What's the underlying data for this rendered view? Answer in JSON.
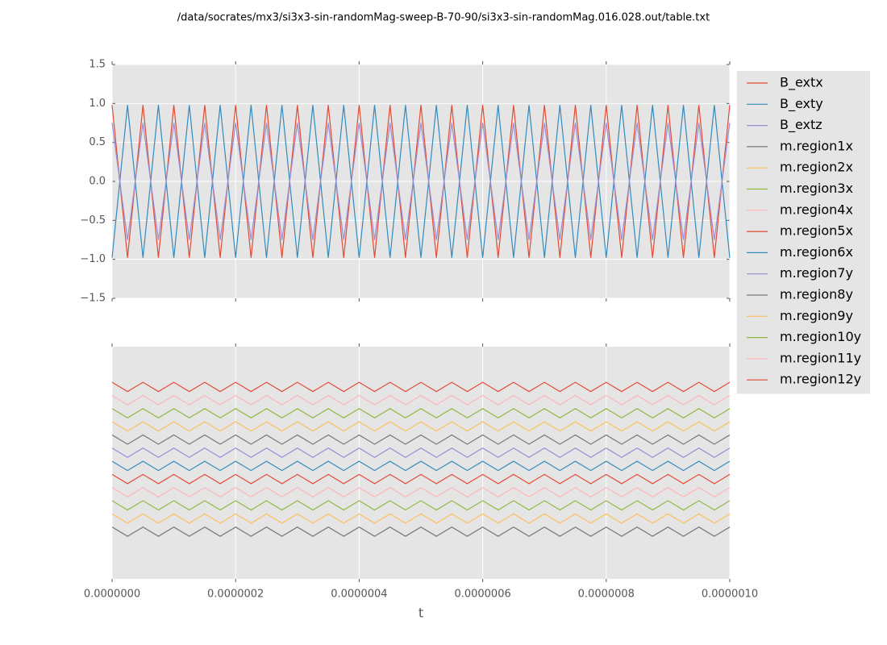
{
  "chart_data": [
    {
      "type": "line",
      "title": "/data/socrates/mx3/si3x3-sin-randomMag-sweep-B-70-90/si3x3-sin-randomMag.016.028.out/table.txt",
      "legend": "outside-right",
      "grid": true,
      "x": [
        0,
        2.5e-08,
        5e-08,
        7.5e-08,
        1e-07,
        1.25e-07,
        1.5e-07,
        1.75e-07,
        2e-07,
        2.25e-07,
        2.5e-07,
        2.75e-07,
        3e-07,
        3.25e-07,
        3.5e-07,
        3.75e-07,
        4e-07,
        4.25e-07,
        4.5e-07,
        4.75e-07,
        5e-07,
        5.25e-07,
        5.5e-07,
        5.75e-07,
        6e-07,
        6.25e-07,
        6.5e-07,
        6.75e-07,
        7e-07,
        7.25e-07,
        7.5e-07,
        7.75e-07,
        8e-07,
        8.25e-07,
        8.5e-07,
        8.75e-07,
        9e-07,
        9.25e-07,
        9.5e-07,
        9.75e-07,
        1e-06
      ],
      "xlim": [
        0,
        1e-06
      ],
      "xticks": [
        0,
        2e-07,
        4e-07,
        6e-07,
        8e-07,
        1e-06
      ],
      "ylim": [
        -1.5,
        1.5
      ],
      "yticks": [
        {
          "value": -1.5,
          "label": "−1.5"
        },
        {
          "value": -1,
          "label": "−1.0"
        },
        {
          "value": -0.5,
          "label": "−0.5"
        },
        {
          "value": 0,
          "label": "0.0"
        },
        0.5,
        {
          "value": 1,
          "label": "1.0"
        },
        1.5
      ],
      "series": [
        {
          "name": "B_extx",
          "color": "#e24a33",
          "values": [
            0.98,
            -0.98,
            0.98,
            -0.98,
            0.98,
            -0.98,
            0.98,
            -0.98,
            0.98,
            -0.98,
            0.98,
            -0.98,
            0.98,
            -0.98,
            0.98,
            -0.98,
            0.98,
            -0.98,
            0.98,
            -0.98,
            0.98,
            -0.98,
            0.98,
            -0.98,
            0.98,
            -0.98,
            0.98,
            -0.98,
            0.98,
            -0.98,
            0.98,
            -0.98,
            0.98,
            -0.98,
            0.98,
            -0.98,
            0.98,
            -0.98,
            0.98,
            -0.98,
            0.98
          ]
        },
        {
          "name": "B_exty",
          "color": "#348abd",
          "values": [
            -0.98,
            0.98,
            -0.98,
            0.98,
            -0.98,
            0.98,
            -0.98,
            0.98,
            -0.98,
            0.98,
            -0.98,
            0.98,
            -0.98,
            0.98,
            -0.98,
            0.98,
            -0.98,
            0.98,
            -0.98,
            0.98,
            -0.98,
            0.98,
            -0.98,
            0.98,
            -0.98,
            0.98,
            -0.98,
            0.98,
            -0.98,
            0.98,
            -0.98,
            0.98,
            -0.98,
            0.98,
            -0.98,
            0.98,
            -0.98,
            0.98,
            -0.98,
            0.98,
            -0.98
          ]
        },
        {
          "name": "B_extz",
          "color": "#988ed5",
          "values": [
            0.75,
            -0.75,
            0.75,
            -0.75,
            0.75,
            -0.75,
            0.75,
            -0.75,
            0.75,
            -0.75,
            0.75,
            -0.75,
            0.75,
            -0.75,
            0.75,
            -0.75,
            0.75,
            -0.75,
            0.75,
            -0.75,
            0.75,
            -0.75,
            0.75,
            -0.75,
            0.75,
            -0.75,
            0.75,
            -0.75,
            0.75,
            -0.75,
            0.75,
            -0.75,
            0.75,
            -0.75,
            0.75,
            -0.75,
            0.75,
            -0.75,
            0.75,
            -0.75,
            0.75
          ]
        }
      ]
    },
    {
      "type": "line",
      "xlabel": "t",
      "grid": true,
      "x": [
        0,
        2.5e-08,
        5e-08,
        7.5e-08,
        1e-07,
        1.25e-07,
        1.5e-07,
        1.75e-07,
        2e-07,
        2.25e-07,
        2.5e-07,
        2.75e-07,
        3e-07,
        3.25e-07,
        3.5e-07,
        3.75e-07,
        4e-07,
        4.25e-07,
        4.5e-07,
        4.75e-07,
        5e-07,
        5.25e-07,
        5.5e-07,
        5.75e-07,
        6e-07,
        6.25e-07,
        6.5e-07,
        6.75e-07,
        7e-07,
        7.25e-07,
        7.5e-07,
        7.75e-07,
        8e-07,
        8.25e-07,
        8.5e-07,
        8.75e-07,
        9e-07,
        9.25e-07,
        9.5e-07,
        9.75e-07,
        1e-06
      ],
      "xlim": [
        0,
        1e-06
      ],
      "xticks": [
        {
          "value": 0,
          "label": "0.0000000"
        },
        {
          "value": 2e-07,
          "label": "0.0000002"
        },
        {
          "value": 4e-07,
          "label": "0.0000004"
        },
        {
          "value": 6e-07,
          "label": "0.0000006"
        },
        {
          "value": 8e-07,
          "label": "0.0000008"
        },
        {
          "value": 1e-06,
          "label": "0.0000010"
        }
      ],
      "ylim": [
        -1.5,
        1.5
      ],
      "series": [
        {
          "name": "m.region1x",
          "color": "#777777",
          "values": [
            -0.83,
            -0.95,
            -0.83,
            -0.95,
            -0.83,
            -0.95,
            -0.83,
            -0.95,
            -0.83,
            -0.95,
            -0.83,
            -0.95,
            -0.83,
            -0.95,
            -0.83,
            -0.95,
            -0.83,
            -0.95,
            -0.83,
            -0.95,
            -0.83,
            -0.95,
            -0.83,
            -0.95,
            -0.83,
            -0.95,
            -0.83,
            -0.95,
            -0.83,
            -0.95,
            -0.83,
            -0.95,
            -0.83,
            -0.95,
            -0.83,
            -0.95,
            -0.83,
            -0.95,
            -0.83,
            -0.95,
            -0.83
          ]
        },
        {
          "name": "m.region2x",
          "color": "#fbc15e",
          "values": [
            -0.66,
            -0.78,
            -0.66,
            -0.78,
            -0.66,
            -0.78,
            -0.66,
            -0.78,
            -0.66,
            -0.78,
            -0.66,
            -0.78,
            -0.66,
            -0.78,
            -0.66,
            -0.78,
            -0.66,
            -0.78,
            -0.66,
            -0.78,
            -0.66,
            -0.78,
            -0.66,
            -0.78,
            -0.66,
            -0.78,
            -0.66,
            -0.78,
            -0.66,
            -0.78,
            -0.66,
            -0.78,
            -0.66,
            -0.78,
            -0.66,
            -0.78,
            -0.66,
            -0.78,
            -0.66,
            -0.78,
            -0.66
          ]
        },
        {
          "name": "m.region3x",
          "color": "#8eba42",
          "values": [
            -0.49,
            -0.61,
            -0.49,
            -0.61,
            -0.49,
            -0.61,
            -0.49,
            -0.61,
            -0.49,
            -0.61,
            -0.49,
            -0.61,
            -0.49,
            -0.61,
            -0.49,
            -0.61,
            -0.49,
            -0.61,
            -0.49,
            -0.61,
            -0.49,
            -0.61,
            -0.49,
            -0.61,
            -0.49,
            -0.61,
            -0.49,
            -0.61,
            -0.49,
            -0.61,
            -0.49,
            -0.61,
            -0.49,
            -0.61,
            -0.49,
            -0.61,
            -0.49,
            -0.61,
            -0.49,
            -0.61,
            -0.49
          ]
        },
        {
          "name": "m.region4x",
          "color": "#ffb5b8",
          "values": [
            -0.32,
            -0.44,
            -0.32,
            -0.44,
            -0.32,
            -0.44,
            -0.32,
            -0.44,
            -0.32,
            -0.44,
            -0.32,
            -0.44,
            -0.32,
            -0.44,
            -0.32,
            -0.44,
            -0.32,
            -0.44,
            -0.32,
            -0.44,
            -0.32,
            -0.44,
            -0.32,
            -0.44,
            -0.32,
            -0.44,
            -0.32,
            -0.44,
            -0.32,
            -0.44,
            -0.32,
            -0.44,
            -0.32,
            -0.44,
            -0.32,
            -0.44,
            -0.32,
            -0.44,
            -0.32,
            -0.44,
            -0.32
          ]
        },
        {
          "name": "m.region5x",
          "color": "#e24a33",
          "values": [
            -0.15,
            -0.27,
            -0.15,
            -0.27,
            -0.15,
            -0.27,
            -0.15,
            -0.27,
            -0.15,
            -0.27,
            -0.15,
            -0.27,
            -0.15,
            -0.27,
            -0.15,
            -0.27,
            -0.15,
            -0.27,
            -0.15,
            -0.27,
            -0.15,
            -0.27,
            -0.15,
            -0.27,
            -0.15,
            -0.27,
            -0.15,
            -0.27,
            -0.15,
            -0.27,
            -0.15,
            -0.27,
            -0.15,
            -0.27,
            -0.15,
            -0.27,
            -0.15,
            -0.27,
            -0.15,
            -0.27,
            -0.15
          ]
        },
        {
          "name": "m.region6x",
          "color": "#348abd",
          "values": [
            0.02,
            -0.1,
            0.02,
            -0.1,
            0.02,
            -0.1,
            0.02,
            -0.1,
            0.02,
            -0.1,
            0.02,
            -0.1,
            0.02,
            -0.1,
            0.02,
            -0.1,
            0.02,
            -0.1,
            0.02,
            -0.1,
            0.02,
            -0.1,
            0.02,
            -0.1,
            0.02,
            -0.1,
            0.02,
            -0.1,
            0.02,
            -0.1,
            0.02,
            -0.1,
            0.02,
            -0.1,
            0.02,
            -0.1,
            0.02,
            -0.1,
            0.02,
            -0.1,
            0.02
          ]
        },
        {
          "name": "m.region7y",
          "color": "#988ed5",
          "values": [
            0.19,
            0.07,
            0.19,
            0.07,
            0.19,
            0.07,
            0.19,
            0.07,
            0.19,
            0.07,
            0.19,
            0.07,
            0.19,
            0.07,
            0.19,
            0.07,
            0.19,
            0.07,
            0.19,
            0.07,
            0.19,
            0.07,
            0.19,
            0.07,
            0.19,
            0.07,
            0.19,
            0.07,
            0.19,
            0.07,
            0.19,
            0.07,
            0.19,
            0.07,
            0.19,
            0.07,
            0.19,
            0.07,
            0.19,
            0.07,
            0.19
          ]
        },
        {
          "name": "m.region8y",
          "color": "#777777",
          "values": [
            0.36,
            0.24,
            0.36,
            0.24,
            0.36,
            0.24,
            0.36,
            0.24,
            0.36,
            0.24,
            0.36,
            0.24,
            0.36,
            0.24,
            0.36,
            0.24,
            0.36,
            0.24,
            0.36,
            0.24,
            0.36,
            0.24,
            0.36,
            0.24,
            0.36,
            0.24,
            0.36,
            0.24,
            0.36,
            0.24,
            0.36,
            0.24,
            0.36,
            0.24,
            0.36,
            0.24,
            0.36,
            0.24,
            0.36,
            0.24,
            0.36
          ]
        },
        {
          "name": "m.region9y",
          "color": "#fbc15e",
          "values": [
            0.53,
            0.41,
            0.53,
            0.41,
            0.53,
            0.41,
            0.53,
            0.41,
            0.53,
            0.41,
            0.53,
            0.41,
            0.53,
            0.41,
            0.53,
            0.41,
            0.53,
            0.41,
            0.53,
            0.41,
            0.53,
            0.41,
            0.53,
            0.41,
            0.53,
            0.41,
            0.53,
            0.41,
            0.53,
            0.41,
            0.53,
            0.41,
            0.53,
            0.41,
            0.53,
            0.41,
            0.53,
            0.41,
            0.53,
            0.41,
            0.53
          ]
        },
        {
          "name": "m.region10y",
          "color": "#8eba42",
          "values": [
            0.7,
            0.58,
            0.7,
            0.58,
            0.7,
            0.58,
            0.7,
            0.58,
            0.7,
            0.58,
            0.7,
            0.58,
            0.7,
            0.58,
            0.7,
            0.58,
            0.7,
            0.58,
            0.7,
            0.58,
            0.7,
            0.58,
            0.7,
            0.58,
            0.7,
            0.58,
            0.7,
            0.58,
            0.7,
            0.58,
            0.7,
            0.58,
            0.7,
            0.58,
            0.7,
            0.58,
            0.7,
            0.58,
            0.7,
            0.58,
            0.7
          ]
        },
        {
          "name": "m.region11y",
          "color": "#ffb5b8",
          "values": [
            0.87,
            0.75,
            0.87,
            0.75,
            0.87,
            0.75,
            0.87,
            0.75,
            0.87,
            0.75,
            0.87,
            0.75,
            0.87,
            0.75,
            0.87,
            0.75,
            0.87,
            0.75,
            0.87,
            0.75,
            0.87,
            0.75,
            0.87,
            0.75,
            0.87,
            0.75,
            0.87,
            0.75,
            0.87,
            0.75,
            0.87,
            0.75,
            0.87,
            0.75,
            0.87,
            0.75,
            0.87,
            0.75,
            0.87,
            0.75,
            0.87
          ]
        },
        {
          "name": "m.region12y",
          "color": "#e24a33",
          "values": [
            1.04,
            0.92,
            1.04,
            0.92,
            1.04,
            0.92,
            1.04,
            0.92,
            1.04,
            0.92,
            1.04,
            0.92,
            1.04,
            0.92,
            1.04,
            0.92,
            1.04,
            0.92,
            1.04,
            0.92,
            1.04,
            0.92,
            1.04,
            0.92,
            1.04,
            0.92,
            1.04,
            0.92,
            1.04,
            0.92,
            1.04,
            0.92,
            1.04,
            0.92,
            1.04,
            0.92,
            1.04,
            0.92,
            1.04,
            0.92,
            1.04
          ]
        }
      ]
    }
  ]
}
